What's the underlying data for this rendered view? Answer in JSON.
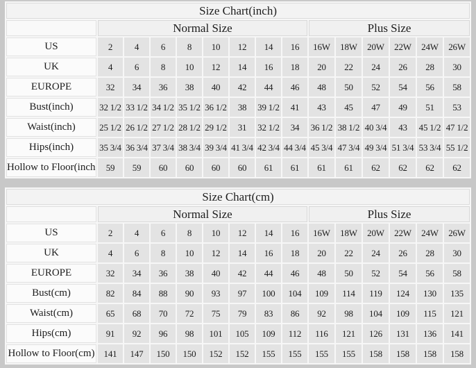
{
  "page": {
    "background": "#c8c8c8",
    "text_color": "#1c1c1c"
  },
  "colors": {
    "table_background": "#f7f7f7",
    "title_row_bg": "#f3f3f3",
    "group_header_bg": "#f0f0f0",
    "label_column_bg": "#fbfbfb",
    "value_cell_bg": "#e3e3e3",
    "border": "#dcdcdc"
  },
  "chart_data": [
    {
      "type": "table",
      "title": "Size Chart(inch)",
      "column_groups": [
        {
          "label": "Normal Size",
          "span": 8
        },
        {
          "label": "Plus Size",
          "span": 6
        }
      ],
      "rows": [
        {
          "label": "US",
          "values": [
            "2",
            "4",
            "6",
            "8",
            "10",
            "12",
            "14",
            "16",
            "16W",
            "18W",
            "20W",
            "22W",
            "24W",
            "26W"
          ]
        },
        {
          "label": "UK",
          "values": [
            "4",
            "6",
            "8",
            "10",
            "12",
            "14",
            "16",
            "18",
            "20",
            "22",
            "24",
            "26",
            "28",
            "30"
          ]
        },
        {
          "label": "EUROPE",
          "values": [
            "32",
            "34",
            "36",
            "38",
            "40",
            "42",
            "44",
            "46",
            "48",
            "50",
            "52",
            "54",
            "56",
            "58"
          ]
        },
        {
          "label": "Bust(inch)",
          "values": [
            "32 1/2",
            "33 1/2",
            "34 1/2",
            "35 1/2",
            "36 1/2",
            "38",
            "39 1/2",
            "41",
            "43",
            "45",
            "47",
            "49",
            "51",
            "53"
          ]
        },
        {
          "label": "Waist(inch)",
          "values": [
            "25 1/2",
            "26 1/2",
            "27 1/2",
            "28 1/2",
            "29 1/2",
            "31",
            "32 1/2",
            "34",
            "36 1/2",
            "38 1/2",
            "40 3/4",
            "43",
            "45 1/2",
            "47 1/2"
          ]
        },
        {
          "label": "Hips(inch)",
          "values": [
            "35 3/4",
            "36 3/4",
            "37 3/4",
            "38 3/4",
            "39 3/4",
            "41 3/4",
            "42 3/4",
            "44 3/4",
            "45 3/4",
            "47 3/4",
            "49 3/4",
            "51 3/4",
            "53 3/4",
            "55 1/2"
          ]
        },
        {
          "label": "Hollow to Floor(inch)",
          "values": [
            "59",
            "59",
            "60",
            "60",
            "60",
            "60",
            "61",
            "61",
            "61",
            "61",
            "62",
            "62",
            "62",
            "62"
          ]
        }
      ]
    },
    {
      "type": "table",
      "title": "Size Chart(cm)",
      "column_groups": [
        {
          "label": "Normal Size",
          "span": 8
        },
        {
          "label": "Plus Size",
          "span": 6
        }
      ],
      "rows": [
        {
          "label": "US",
          "values": [
            "2",
            "4",
            "6",
            "8",
            "10",
            "12",
            "14",
            "16",
            "16W",
            "18W",
            "20W",
            "22W",
            "24W",
            "26W"
          ]
        },
        {
          "label": "UK",
          "values": [
            "4",
            "6",
            "8",
            "10",
            "12",
            "14",
            "16",
            "18",
            "20",
            "22",
            "24",
            "26",
            "28",
            "30"
          ]
        },
        {
          "label": "EUROPE",
          "values": [
            "32",
            "34",
            "36",
            "38",
            "40",
            "42",
            "44",
            "46",
            "48",
            "50",
            "52",
            "54",
            "56",
            "58"
          ]
        },
        {
          "label": "Bust(cm)",
          "values": [
            "82",
            "84",
            "88",
            "90",
            "93",
            "97",
            "100",
            "104",
            "109",
            "114",
            "119",
            "124",
            "130",
            "135"
          ]
        },
        {
          "label": "Waist(cm)",
          "values": [
            "65",
            "68",
            "70",
            "72",
            "75",
            "79",
            "83",
            "86",
            "92",
            "98",
            "104",
            "109",
            "115",
            "121"
          ]
        },
        {
          "label": "Hips(cm)",
          "values": [
            "91",
            "92",
            "96",
            "98",
            "101",
            "105",
            "109",
            "112",
            "116",
            "121",
            "126",
            "131",
            "136",
            "141"
          ]
        },
        {
          "label": "Hollow to Floor(cm)",
          "values": [
            "141",
            "147",
            "150",
            "150",
            "152",
            "152",
            "155",
            "155",
            "155",
            "155",
            "158",
            "158",
            "158",
            "158"
          ]
        }
      ]
    }
  ],
  "layout": {
    "label_col_width": 130,
    "normal_col_width": 36,
    "plus_col_width": 37
  }
}
